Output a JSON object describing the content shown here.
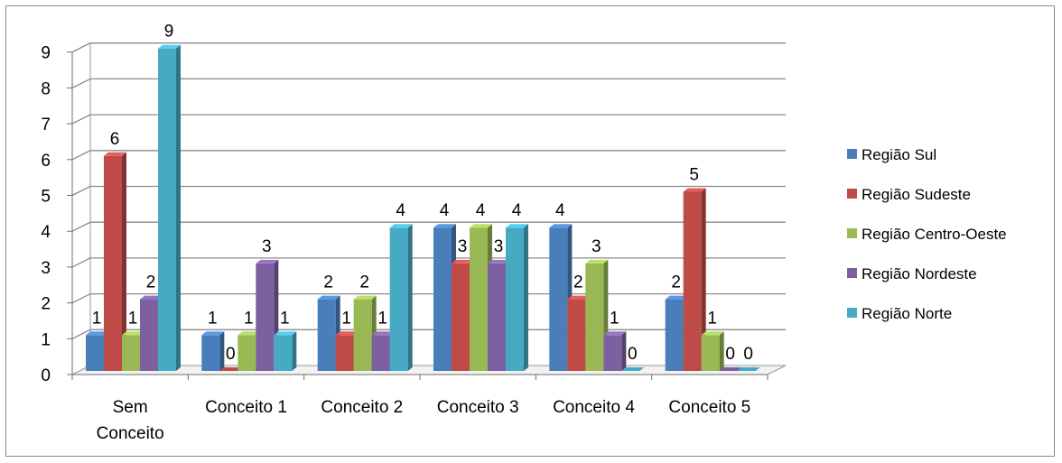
{
  "chart_data": {
    "type": "bar",
    "title": "",
    "xlabel": "",
    "ylabel": "",
    "ylim": [
      0,
      9
    ],
    "yticks": [
      "0",
      "1",
      "2",
      "3",
      "4",
      "5",
      "6",
      "7",
      "8",
      "9"
    ],
    "grid": true,
    "three_d": true,
    "legend_position": "right",
    "categories": [
      [
        "Sem",
        "Conceito"
      ],
      [
        "Conceito 1"
      ],
      [
        "Conceito 2"
      ],
      [
        "Conceito 3"
      ],
      [
        "Conceito 4"
      ],
      [
        "Conceito 5"
      ]
    ],
    "series": [
      {
        "name": "Região Sul",
        "color": "#4a7ebb",
        "values": [
          1,
          1,
          2,
          4,
          4,
          2
        ]
      },
      {
        "name": "Região Sudeste",
        "color": "#be4b48",
        "values": [
          6,
          0,
          1,
          3,
          2,
          5
        ]
      },
      {
        "name": "Região Centro-Oeste",
        "color": "#98b954",
        "values": [
          1,
          1,
          2,
          4,
          3,
          1
        ]
      },
      {
        "name": "Região Nordeste",
        "color": "#7d60a0",
        "values": [
          2,
          3,
          1,
          3,
          1,
          0
        ]
      },
      {
        "name": "Região Norte",
        "color": "#46aac5",
        "values": [
          9,
          1,
          4,
          4,
          0,
          0
        ]
      }
    ]
  }
}
